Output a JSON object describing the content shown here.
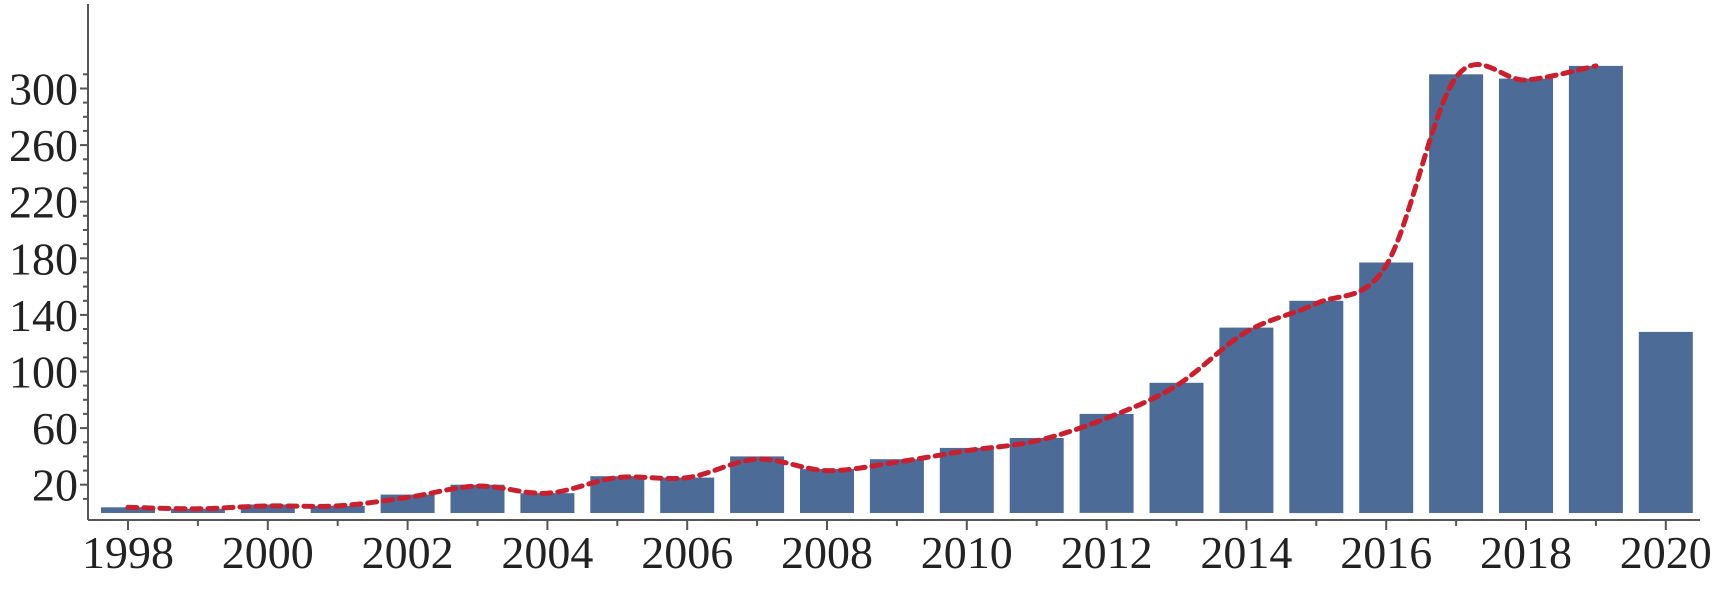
{
  "chart_data": {
    "type": "bar",
    "title": "",
    "xlabel": "",
    "ylabel": "",
    "categories": [
      "1998",
      "1999",
      "2000",
      "2001",
      "2002",
      "2003",
      "2004",
      "2005",
      "2006",
      "2007",
      "2008",
      "2009",
      "2010",
      "2011",
      "2012",
      "2013",
      "2014",
      "2015",
      "2016",
      "2017",
      "2018",
      "2019",
      "2020"
    ],
    "series": [
      {
        "values": [
          4,
          3,
          6,
          5,
          13,
          20,
          14,
          26,
          25,
          40,
          31,
          38,
          46,
          53,
          70,
          92,
          131,
          150,
          177,
          310,
          307,
          316,
          128
        ]
      }
    ],
    "trend_line": {
      "style": "dashed",
      "values": [
        4,
        3,
        5,
        5,
        11,
        19,
        14,
        25,
        25,
        38,
        30,
        36,
        44,
        51,
        67,
        90,
        128,
        148,
        175,
        308,
        306,
        316
      ]
    },
    "ylim": [
      0,
      320
    ],
    "y_ticks": [
      20,
      60,
      100,
      140,
      180,
      220,
      260,
      300
    ],
    "x_tick_labels": [
      "1998",
      "2000",
      "2002",
      "2004",
      "2006",
      "2008",
      "2010",
      "2012",
      "2014",
      "2016",
      "2018",
      "2020"
    ],
    "grid": false,
    "colors": {
      "bar": "#4c6b96",
      "trend": "#c8202f",
      "axis": "#555555"
    }
  }
}
